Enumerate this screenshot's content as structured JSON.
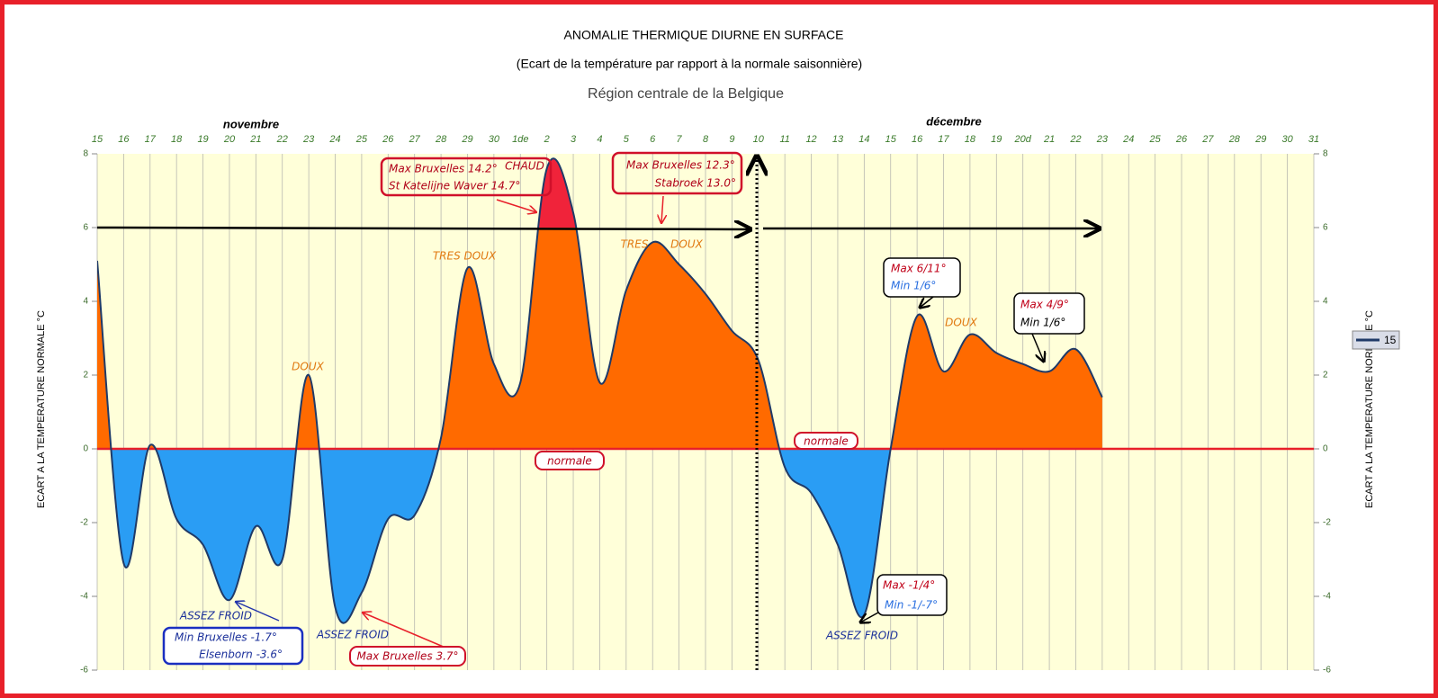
{
  "chart_data": {
    "type": "area",
    "title": "ANOMALIE THERMIQUE DIURNE EN SURFACE",
    "subtitle": "(Ecart de la température par rapport à la normale saisonnière)",
    "region": "Région centrale de la Belgique",
    "month_labels": [
      "novembre",
      "décembre"
    ],
    "y_label": "ECART A LA TEMPERATURE NORMALE °C",
    "categories": [
      "15",
      "16",
      "17",
      "18",
      "19",
      "20",
      "21",
      "22",
      "23",
      "24",
      "25",
      "26",
      "27",
      "28",
      "29",
      "30",
      "1de",
      "2",
      "3",
      "4",
      "5",
      "6",
      "7",
      "8",
      "9",
      "10",
      "11",
      "12",
      "13",
      "14",
      "15",
      "16",
      "17",
      "18",
      "19",
      "20d",
      "21",
      "22",
      "23",
      "24",
      "25",
      "26",
      "27",
      "28",
      "29",
      "30",
      "31"
    ],
    "series": [
      {
        "name": "15",
        "color": "#1f3a68",
        "values": [
          5.1,
          -3.1,
          0.1,
          -1.9,
          -2.6,
          -4.1,
          -2.1,
          -3.0,
          2.0,
          -4.3,
          -3.9,
          -1.9,
          -1.8,
          0.3,
          4.9,
          2.3,
          1.8,
          7.6,
          6.4,
          1.8,
          4.3,
          5.6,
          5.0,
          4.2,
          3.2,
          2.4,
          -0.5,
          -1.2,
          -2.6,
          -4.5,
          0,
          3.6,
          2.1,
          3.1,
          2.6,
          2.3,
          2.1,
          2.7,
          1.4,
          null,
          null,
          null,
          null,
          null,
          null,
          null,
          null
        ]
      }
    ],
    "fill_colors": {
      "above": "#ff6a00",
      "high": "#f0233a",
      "below": "#2a9df4"
    },
    "high_threshold": 6,
    "ylim": [
      -6,
      8
    ],
    "yticks": [
      -6,
      -4,
      -2,
      0,
      2,
      4,
      6,
      8
    ],
    "annotations": {
      "chaud": "CHAUD",
      "box1": [
        "Max Bruxelles 14.2°",
        "St Katelijne Waver 14.7°"
      ],
      "box2": [
        "Max Bruxelles 12.3°",
        "Stabroek 13.0°"
      ],
      "tres_doux": "TRES DOUX",
      "tres": "TRES",
      "doux2": "DOUX",
      "doux1": "DOUX",
      "doux3": "DOUX",
      "normale": "normale",
      "box3": [
        "Max 6/11°",
        "Min 1/6°"
      ],
      "box4": [
        "Max 4/9°",
        "Min 1/6°"
      ],
      "box5": [
        "Max -1/4°",
        "Min -1/-7°"
      ],
      "froid": "ASSEZ FROID",
      "box6": [
        "Min Bruxelles -1.7°",
        "Elsenborn -3.6°"
      ],
      "box7": "Max Bruxelles 3.7°"
    }
  }
}
